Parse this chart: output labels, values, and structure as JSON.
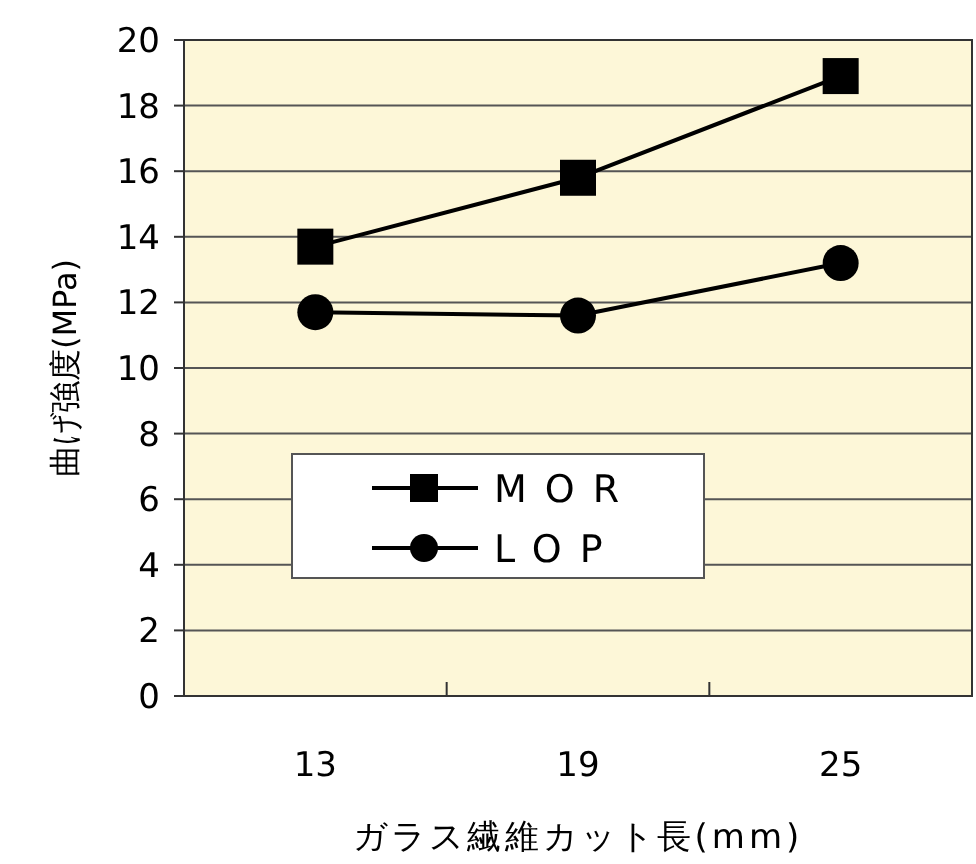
{
  "chart_data": {
    "type": "line",
    "xlabel": "ガラス繊維カット長(mm)",
    "ylabel": "曲げ強度(MPa)",
    "categories": [
      "13",
      "19",
      "25"
    ],
    "series": [
      {
        "name": "MOR",
        "color": "#000000",
        "marker": "square",
        "values": [
          13.7,
          15.8,
          18.9
        ]
      },
      {
        "name": "LOP",
        "color": "#000000",
        "marker": "circle",
        "values": [
          11.7,
          11.6,
          13.2
        ]
      }
    ],
    "ylim": [
      0,
      20
    ],
    "yticks": [
      0,
      2,
      4,
      6,
      8,
      10,
      12,
      14,
      16,
      18,
      20
    ],
    "grid": "y",
    "legend": "bottom",
    "line_style": "solid"
  }
}
